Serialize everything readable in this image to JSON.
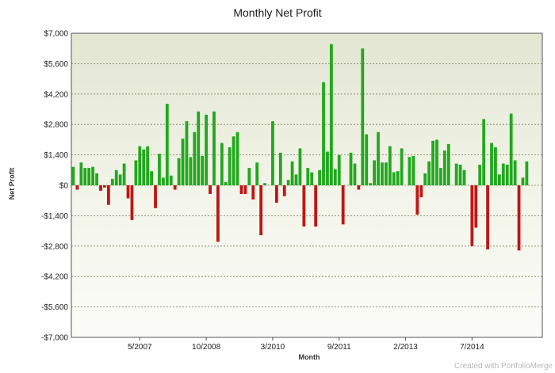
{
  "title": "Monthly Net Profit",
  "watermark": "Created with PortfolioMerge",
  "chart_data": {
    "type": "bar",
    "title": "Monthly Net Profit",
    "xlabel": "Month",
    "ylabel": "Net Profit",
    "ylim": [
      -7000,
      7000
    ],
    "y_ticks": [
      7000,
      5600,
      4200,
      2800,
      1400,
      0,
      -1400,
      -2800,
      -4200,
      -5600,
      -7000
    ],
    "y_tick_labels": [
      "$7,000",
      "$5,600",
      "$4,200",
      "$2,800",
      "$1,400",
      "$0",
      "-$1,400",
      "-$2,800",
      "-$4,200",
      "-$5,600",
      "-$7,000"
    ],
    "x_tick_labels": [
      {
        "label": "5/2007",
        "index": 17
      },
      {
        "label": "10/2008",
        "index": 34
      },
      {
        "label": "3/2010",
        "index": 51
      },
      {
        "label": "9/2011",
        "index": 68
      },
      {
        "label": "2/2013",
        "index": 85
      },
      {
        "label": "7/2014",
        "index": 102
      }
    ],
    "grid": true,
    "positive_color": "#22a81e",
    "negative_color": "#c01515",
    "values": [
      850,
      -200,
      1050,
      800,
      800,
      850,
      550,
      -250,
      -100,
      -900,
      300,
      700,
      500,
      1000,
      -600,
      -1600,
      1150,
      1800,
      1650,
      1800,
      650,
      -1050,
      1450,
      350,
      3750,
      450,
      -200,
      1250,
      2150,
      2950,
      1300,
      2450,
      3400,
      1350,
      3250,
      -400,
      3400,
      -2600,
      1950,
      150,
      1750,
      2250,
      2450,
      -400,
      -400,
      800,
      -650,
      1050,
      -2300,
      100,
      0,
      2950,
      -800,
      1500,
      -500,
      250,
      1100,
      500,
      1700,
      -1900,
      800,
      600,
      -1900,
      700,
      4750,
      1550,
      6500,
      750,
      1400,
      -1800,
      0,
      1500,
      1000,
      -200,
      6300,
      2350,
      100,
      1150,
      2450,
      1050,
      1050,
      1800,
      600,
      650,
      1700,
      0,
      1300,
      1350,
      -1350,
      -550,
      550,
      1100,
      2050,
      2100,
      800,
      1600,
      1900,
      0,
      1000,
      950,
      700,
      0,
      -2800,
      -1950,
      950,
      3050,
      -2950,
      1950,
      1750,
      500,
      1000,
      950,
      3300,
      1150,
      -3000,
      350,
      1100
    ]
  }
}
